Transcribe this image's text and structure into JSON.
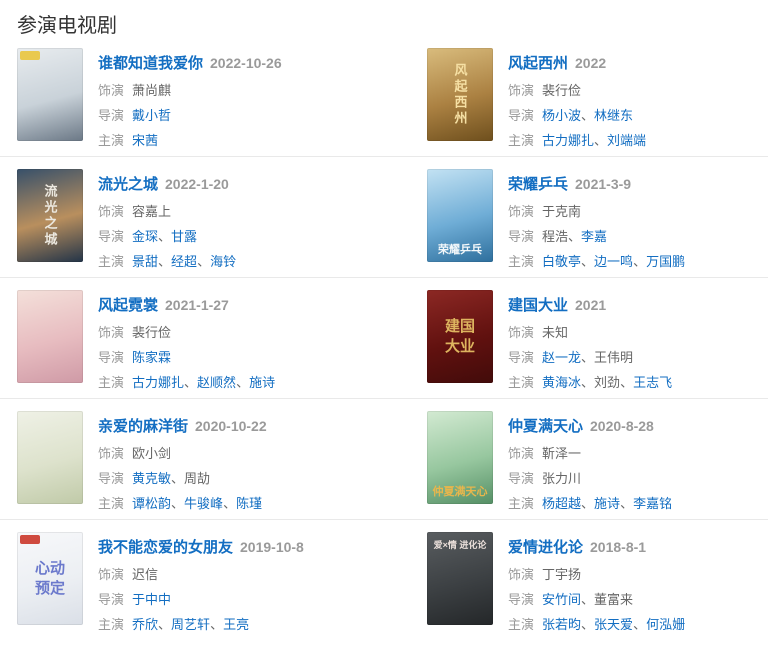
{
  "section": {
    "title": "参演电视剧"
  },
  "labels": {
    "role": "饰演",
    "director": "导演",
    "cast": "主演",
    "separator": "、"
  },
  "colors": {
    "link": "#136ec2",
    "title_link": "#136ec2",
    "date": "#9a9a9a",
    "label": "#999999",
    "plain_text": "#666666",
    "divider": "#e9e9e9",
    "heading": "#333333"
  },
  "items": [
    {
      "title": "谁都知道我爱你",
      "date": "2022-10-26",
      "role": "萧尚麒",
      "directors": [
        {
          "name": "戴小哲",
          "link": true
        }
      ],
      "cast": [
        {
          "name": "宋茜",
          "link": true
        }
      ],
      "poster": {
        "colors": [
          "#e8ecef",
          "#c9d2d9",
          "#6b7886"
        ],
        "badge_color": "#e9c94f"
      }
    },
    {
      "title": "风起西州",
      "date": "2022",
      "role": "裴行俭",
      "directors": [
        {
          "name": "杨小波",
          "link": true
        },
        {
          "name": "林继东",
          "link": true
        }
      ],
      "cast": [
        {
          "name": "古力娜扎",
          "link": true
        },
        {
          "name": "刘端端",
          "link": true
        }
      ],
      "poster": {
        "colors": [
          "#d9bc7d",
          "#ab8142",
          "#6e4f1d"
        ],
        "text": "风起西州",
        "text_color": "#f6e0a4",
        "text_pos": "vertical"
      }
    },
    {
      "title": "流光之城",
      "date": "2022-1-20",
      "role": "容嘉上",
      "directors": [
        {
          "name": "金琛",
          "link": true
        },
        {
          "name": "甘露",
          "link": true
        }
      ],
      "cast": [
        {
          "name": "景甜",
          "link": true
        },
        {
          "name": "经超",
          "link": true
        },
        {
          "name": "海铃",
          "link": true
        }
      ],
      "poster": {
        "colors": [
          "#37506a",
          "#b98f5e",
          "#233448"
        ],
        "text": "流光之城",
        "text_color": "#ece8df",
        "text_pos": "vertical"
      }
    },
    {
      "title": "荣耀乒乓",
      "date": "2021-3-9",
      "role": "于克南",
      "directors": [
        {
          "name": "程浩",
          "link": false
        },
        {
          "name": "李嘉",
          "link": true
        }
      ],
      "cast": [
        {
          "name": "白敬亭",
          "link": true
        },
        {
          "name": "边一鸣",
          "link": true
        },
        {
          "name": "万国鹏",
          "link": true
        }
      ],
      "poster": {
        "colors": [
          "#c3e2f3",
          "#6fadd6",
          "#2e6f9d"
        ],
        "text": "荣耀乒乓",
        "text_color": "#f4f8fa",
        "text_pos": "bottom"
      }
    },
    {
      "title": "风起霓裳",
      "date": "2021-1-27",
      "role": "裴行俭",
      "directors": [
        {
          "name": "陈家霖",
          "link": true
        }
      ],
      "cast": [
        {
          "name": "古力娜扎",
          "link": true
        },
        {
          "name": "赵顺然",
          "link": true
        },
        {
          "name": "施诗",
          "link": true
        }
      ],
      "poster": {
        "colors": [
          "#f4e0da",
          "#e7bcc0",
          "#cf9aa6"
        ]
      }
    },
    {
      "title": "建国大业",
      "date": "2021",
      "role": "未知",
      "directors": [
        {
          "name": "赵一龙",
          "link": true
        },
        {
          "name": "王伟明",
          "link": false
        }
      ],
      "cast": [
        {
          "name": "黄海冰",
          "link": true
        },
        {
          "name": "刘劲",
          "link": false
        },
        {
          "name": "王志飞",
          "link": true
        }
      ],
      "poster": {
        "colors": [
          "#8c2824",
          "#61110f",
          "#420b0a"
        ],
        "text": "建国大业",
        "text_color": "#ddb45f",
        "text_pos": "center-wrap"
      }
    },
    {
      "title": "亲爱的麻洋街",
      "date": "2020-10-22",
      "role": "欧小剑",
      "directors": [
        {
          "name": "黄克敏",
          "link": true
        },
        {
          "name": "周劼",
          "link": false
        }
      ],
      "cast": [
        {
          "name": "谭松韵",
          "link": true
        },
        {
          "name": "牛骏峰",
          "link": true
        },
        {
          "name": "陈瑾",
          "link": true
        }
      ],
      "poster": {
        "colors": [
          "#eff1e6",
          "#dde2cc",
          "#c0caa8"
        ]
      }
    },
    {
      "title": "仲夏满天心",
      "date": "2020-8-28",
      "role": "靳泽一",
      "directors": [
        {
          "name": "张力川",
          "link": false
        }
      ],
      "cast": [
        {
          "name": "杨超越",
          "link": true
        },
        {
          "name": "施诗",
          "link": true
        },
        {
          "name": "李嘉铭",
          "link": true
        }
      ],
      "poster": {
        "colors": [
          "#d3ead2",
          "#97c79f",
          "#558f65"
        ],
        "text": "仲夏满天心",
        "text_color": "#e8b64c",
        "text_pos": "bottom"
      }
    },
    {
      "title": "我不能恋爱的女朋友",
      "date": "2019-10-8",
      "role": "迟信",
      "directors": [
        {
          "name": "于中中",
          "link": true
        }
      ],
      "cast": [
        {
          "name": "乔欣",
          "link": true
        },
        {
          "name": "周艺轩",
          "link": true
        },
        {
          "name": "王亮",
          "link": true
        }
      ],
      "poster": {
        "colors": [
          "#f7f8fa",
          "#eceff3",
          "#dadfe7"
        ],
        "text": "心动预定",
        "text_color": "#6b79cc",
        "text_pos": "center-wrap",
        "badge_color": "#cf4a3f"
      }
    },
    {
      "title": "爱情进化论",
      "date": "2018-8-1",
      "role": "丁宇扬",
      "directors": [
        {
          "name": "安竹间",
          "link": true
        },
        {
          "name": "董富来",
          "link": false
        }
      ],
      "cast": [
        {
          "name": "张若昀",
          "link": true
        },
        {
          "name": "张天爱",
          "link": true
        },
        {
          "name": "何泓姗",
          "link": true
        }
      ],
      "poster": {
        "colors": [
          "#595d60",
          "#3c4043",
          "#242729"
        ],
        "text": "爱×情 进化论",
        "text_color": "#eadfda",
        "text_pos": "top"
      }
    }
  ]
}
